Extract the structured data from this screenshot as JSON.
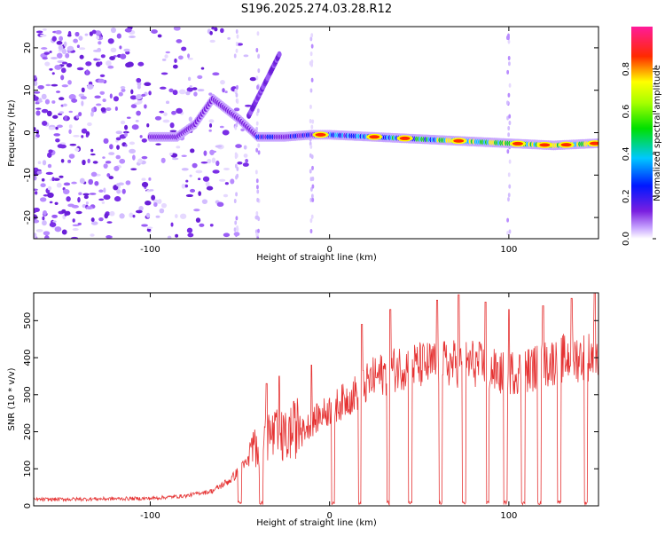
{
  "title": "S196.2025.274.03.28.R12",
  "colors": {
    "line": "#e53333",
    "frame": "#000000",
    "background": "#ffffff"
  },
  "chart_data": [
    {
      "type": "heatmap",
      "title": "S196.2025.274.03.28.R12",
      "xlabel": "Height of straight line (km)",
      "ylabel": "Frequency (Hz)",
      "xlim": [
        -165,
        150
      ],
      "ylim": [
        -25,
        25
      ],
      "xticks": [
        -100,
        0,
        100
      ],
      "yticks": [
        20,
        10,
        0,
        -10,
        -20
      ],
      "tick_labels_x": [
        "-100",
        "0",
        "100"
      ],
      "tick_labels_y": [
        "20",
        "10",
        "0",
        "-10",
        "-20"
      ],
      "colorbar": {
        "label": "Normalized spectral amplitude",
        "range": [
          0,
          1
        ],
        "ticks": [
          "0.0",
          "0.2",
          "0.4",
          "0.6",
          "0.8"
        ],
        "tick_values": [
          0,
          0.2,
          0.4,
          0.6,
          0.8
        ]
      },
      "ridge": {
        "description_points": [
          {
            "x": -100,
            "y": -1
          },
          {
            "x": -85,
            "y": -1
          },
          {
            "x": -75,
            "y": 2
          },
          {
            "x": -65,
            "y": 8
          },
          {
            "x": -50,
            "y": 3
          },
          {
            "x": -40,
            "y": -1
          },
          {
            "x": -25,
            "y": -1
          },
          {
            "x": -10,
            "y": -0.5
          },
          {
            "x": 0,
            "y": -0.5
          },
          {
            "x": 25,
            "y": -1
          },
          {
            "x": 50,
            "y": -1.5
          },
          {
            "x": 75,
            "y": -2
          },
          {
            "x": 100,
            "y": -2.5
          },
          {
            "x": 125,
            "y": -3
          },
          {
            "x": 150,
            "y": -2.5
          }
        ]
      }
    },
    {
      "type": "line",
      "title": "",
      "xlabel": "Height of straight line (km)",
      "ylabel": "SNR (10 * v/v)",
      "xlim": [
        -165,
        150
      ],
      "ylim": [
        0,
        575
      ],
      "xticks": [
        -100,
        0,
        100
      ],
      "yticks": [
        0,
        100,
        200,
        300,
        400,
        500
      ],
      "tick_labels_x": [
        "-100",
        "0",
        "100"
      ],
      "tick_labels_y": [
        "0",
        "100",
        "200",
        "300",
        "400",
        "500"
      ],
      "series": [
        {
          "name": "SNR",
          "envelope": [
            {
              "x": -165,
              "y": 15
            },
            {
              "x": -100,
              "y": 18
            },
            {
              "x": -80,
              "y": 25
            },
            {
              "x": -65,
              "y": 40
            },
            {
              "x": -55,
              "y": 70
            },
            {
              "x": -45,
              "y": 120
            },
            {
              "x": -35,
              "y": 170
            },
            {
              "x": -25,
              "y": 160
            },
            {
              "x": -15,
              "y": 200
            },
            {
              "x": -5,
              "y": 240
            },
            {
              "x": 5,
              "y": 270
            },
            {
              "x": 15,
              "y": 300
            },
            {
              "x": 25,
              "y": 340
            },
            {
              "x": 40,
              "y": 370
            },
            {
              "x": 60,
              "y": 375
            },
            {
              "x": 80,
              "y": 380
            },
            {
              "x": 95,
              "y": 350
            },
            {
              "x": 110,
              "y": 360
            },
            {
              "x": 130,
              "y": 390
            },
            {
              "x": 150,
              "y": 400
            }
          ],
          "dropouts_x": [
            -50,
            -38,
            2,
            17,
            33,
            45,
            62,
            75,
            88,
            98,
            108,
            117,
            128,
            143
          ],
          "spike_peaks": [
            {
              "x": -35,
              "y": 330
            },
            {
              "x": -28,
              "y": 350
            },
            {
              "x": -10,
              "y": 380
            },
            {
              "x": 18,
              "y": 490
            },
            {
              "x": 34,
              "y": 530
            },
            {
              "x": 60,
              "y": 555
            },
            {
              "x": 72,
              "y": 570
            },
            {
              "x": 87,
              "y": 550
            },
            {
              "x": 100,
              "y": 530
            },
            {
              "x": 119,
              "y": 540
            },
            {
              "x": 135,
              "y": 560
            },
            {
              "x": 148,
              "y": 575
            }
          ]
        }
      ]
    }
  ]
}
